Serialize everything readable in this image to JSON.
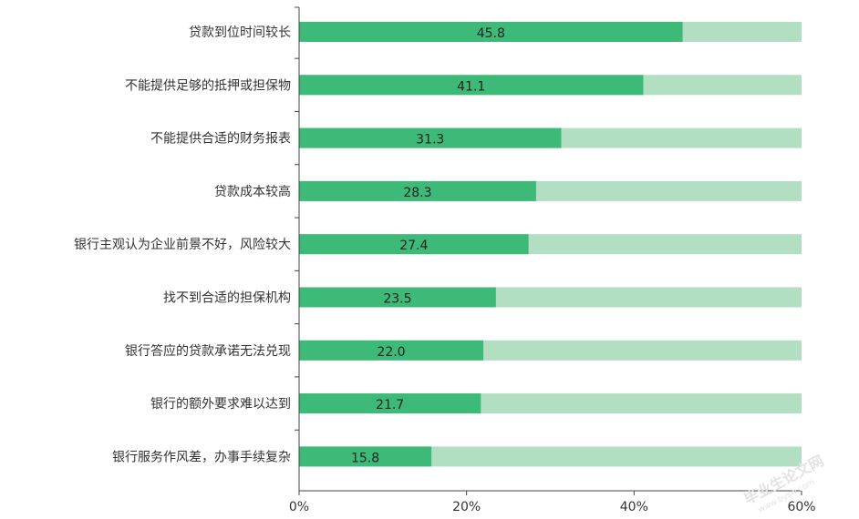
{
  "chart_data": {
    "type": "bar",
    "orientation": "horizontal",
    "stacked_background": true,
    "categories": [
      "贷款到位时间较长",
      "不能提供足够的抵押或担保物",
      "不能提供合适的财务报表",
      "贷款成本较高",
      "银行主观认为企业前景不好，风险较大",
      "找不到合适的担保机构",
      "银行答应的贷款承诺无法兑现",
      "银行的额外要求难以达到",
      "银行服务作风差，办事手续复杂"
    ],
    "values": [
      45.8,
      41.1,
      31.3,
      28.3,
      27.4,
      23.5,
      22.0,
      21.7,
      15.8
    ],
    "value_labels": [
      "45.8",
      "41.1",
      "31.3",
      "28.3",
      "27.4",
      "23.5",
      "22.0",
      "21.7",
      "15.8"
    ],
    "xlim": [
      0,
      60
    ],
    "xticks": [
      0,
      20,
      40,
      60
    ],
    "xtick_labels": [
      "0%",
      "20%",
      "40%",
      "60%"
    ],
    "title": "",
    "xlabel": "",
    "ylabel": "",
    "grid": false,
    "colors": {
      "bar": "#3db978",
      "background_bar": "#b2dfc1",
      "axis": "#444444"
    }
  },
  "watermark": {
    "line1": "毕业生论文网",
    "line2": "www.bysw.com"
  }
}
